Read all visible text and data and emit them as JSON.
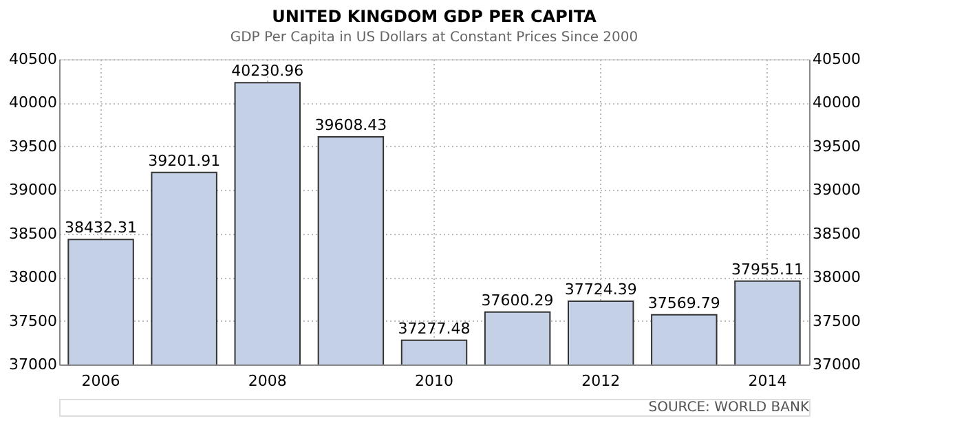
{
  "chart_data": {
    "type": "bar",
    "title": "UNITED KINGDOM GDP PER CAPITA",
    "subtitle": "GDP Per Capita in US Dollars at Constant Prices Since 2000",
    "categories": [
      "2006",
      null,
      "2008",
      null,
      "2010",
      null,
      "2012",
      null,
      "2014"
    ],
    "values": [
      38432.31,
      39201.91,
      40230.96,
      39608.43,
      37277.48,
      37600.29,
      37724.39,
      37569.79,
      37955.11
    ],
    "color": "#c3d0e6",
    "ylim": [
      37000,
      40500
    ],
    "yticks": [
      37000,
      37500,
      38000,
      38500,
      39000,
      39500,
      40000,
      40500
    ],
    "y2lim": [
      37000,
      40500
    ],
    "y2ticks": [
      37000,
      37500,
      38000,
      38500,
      39000,
      39500,
      40000,
      40500
    ],
    "grid": true,
    "data_labels": true,
    "annotations": [
      "SOURCE: WORLD BANK"
    ]
  }
}
